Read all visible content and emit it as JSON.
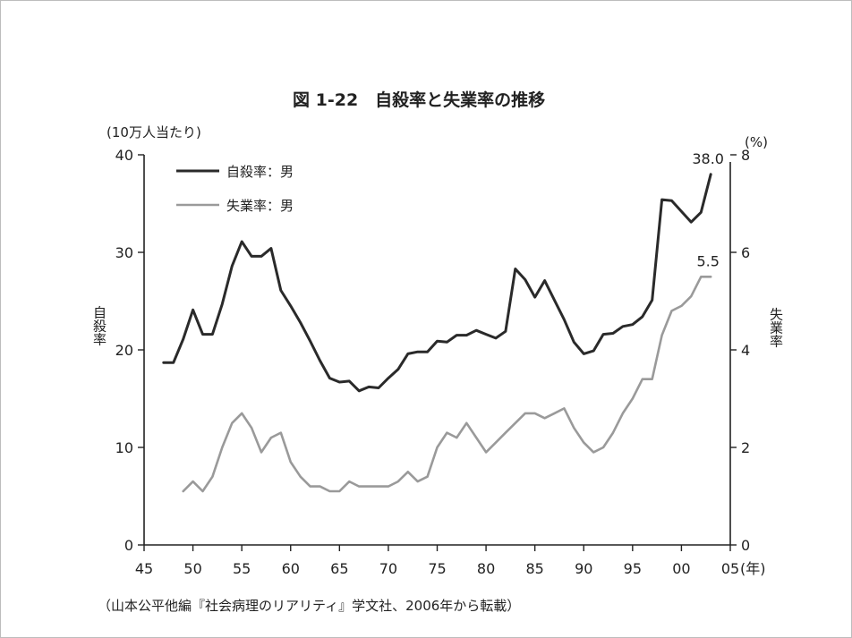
{
  "chart_data": {
    "type": "line",
    "title": "図 1-22　自殺率と失業率の推移",
    "left_unit": "(10万人当たり)",
    "right_unit": "(%)",
    "ylabel": "自殺率",
    "y2label": "失業率",
    "x_unit": "(年)",
    "source": "（山本公平他編『社会病理のリアリティ』学文社、2006年から転載）",
    "xlim": [
      1945,
      2005
    ],
    "ylim": [
      0,
      40
    ],
    "y2lim": [
      0,
      8
    ],
    "x_ticks": [
      {
        "year": 1945,
        "label": "45"
      },
      {
        "year": 1950,
        "label": "50"
      },
      {
        "year": 1955,
        "label": "55"
      },
      {
        "year": 1960,
        "label": "60"
      },
      {
        "year": 1965,
        "label": "65"
      },
      {
        "year": 1970,
        "label": "70"
      },
      {
        "year": 1975,
        "label": "75"
      },
      {
        "year": 1980,
        "label": "80"
      },
      {
        "year": 1985,
        "label": "85"
      },
      {
        "year": 1990,
        "label": "90"
      },
      {
        "year": 1995,
        "label": "95"
      },
      {
        "year": 2000,
        "label": "00"
      },
      {
        "year": 2005,
        "label": "05"
      }
    ],
    "y_ticks": [
      "0",
      "10",
      "20",
      "30",
      "40"
    ],
    "y2_ticks": [
      "0",
      "2",
      "4",
      "6",
      "8"
    ],
    "legend_position": "top-left",
    "series": [
      {
        "name": "自殺率：男",
        "axis": "left",
        "color": "#2a2a2a",
        "x": [
          1947,
          1948,
          1949,
          1950,
          1951,
          1952,
          1953,
          1954,
          1955,
          1956,
          1957,
          1958,
          1959,
          1960,
          1961,
          1962,
          1963,
          1964,
          1965,
          1966,
          1967,
          1968,
          1969,
          1970,
          1971,
          1972,
          1973,
          1974,
          1975,
          1976,
          1977,
          1978,
          1979,
          1980,
          1981,
          1982,
          1983,
          1984,
          1985,
          1986,
          1987,
          1988,
          1989,
          1990,
          1991,
          1992,
          1993,
          1994,
          1995,
          1996,
          1997,
          1998,
          1999,
          2000,
          2001,
          2002,
          2003
        ],
        "values": [
          18.7,
          18.7,
          21.1,
          24.1,
          21.6,
          21.6,
          24.7,
          28.6,
          31.1,
          29.6,
          29.6,
          30.4,
          26.1,
          24.5,
          22.8,
          20.9,
          18.9,
          17.1,
          16.7,
          16.8,
          15.8,
          16.2,
          16.1,
          17.1,
          18.0,
          19.6,
          19.8,
          19.8,
          20.9,
          20.8,
          21.5,
          21.5,
          22.0,
          21.6,
          21.2,
          21.9,
          28.3,
          27.2,
          25.4,
          27.1,
          25.1,
          23.1,
          20.8,
          19.6,
          19.9,
          21.6,
          21.7,
          22.4,
          22.6,
          23.4,
          25.1,
          35.4,
          35.3,
          34.2,
          33.1,
          34.1,
          38.0
        ]
      },
      {
        "name": "失業率：男",
        "axis": "right",
        "color": "#9a9a9a",
        "x": [
          1949,
          1950,
          1951,
          1952,
          1953,
          1954,
          1955,
          1956,
          1957,
          1958,
          1959,
          1960,
          1961,
          1962,
          1963,
          1964,
          1965,
          1966,
          1967,
          1968,
          1969,
          1970,
          1971,
          1972,
          1973,
          1974,
          1975,
          1976,
          1977,
          1978,
          1979,
          1980,
          1981,
          1982,
          1983,
          1984,
          1985,
          1986,
          1987,
          1988,
          1989,
          1990,
          1991,
          1992,
          1993,
          1994,
          1995,
          1996,
          1997,
          1998,
          1999,
          2000,
          2001,
          2002,
          2003
        ],
        "values": [
          1.1,
          1.3,
          1.1,
          1.4,
          2.0,
          2.5,
          2.7,
          2.4,
          1.9,
          2.2,
          2.3,
          1.7,
          1.4,
          1.2,
          1.2,
          1.1,
          1.1,
          1.3,
          1.2,
          1.2,
          1.2,
          1.2,
          1.3,
          1.5,
          1.3,
          1.4,
          2.0,
          2.3,
          2.2,
          2.5,
          2.2,
          1.9,
          2.1,
          2.3,
          2.5,
          2.7,
          2.7,
          2.6,
          2.7,
          2.8,
          2.4,
          2.1,
          1.9,
          2.0,
          2.3,
          2.7,
          3.0,
          3.4,
          3.4,
          4.3,
          4.8,
          4.9,
          5.1,
          5.5,
          5.5
        ]
      }
    ],
    "annotations": [
      {
        "text": "38.0",
        "series": 0,
        "x": 2003
      },
      {
        "text": "5.5",
        "series": 1,
        "x": 2003
      }
    ]
  }
}
